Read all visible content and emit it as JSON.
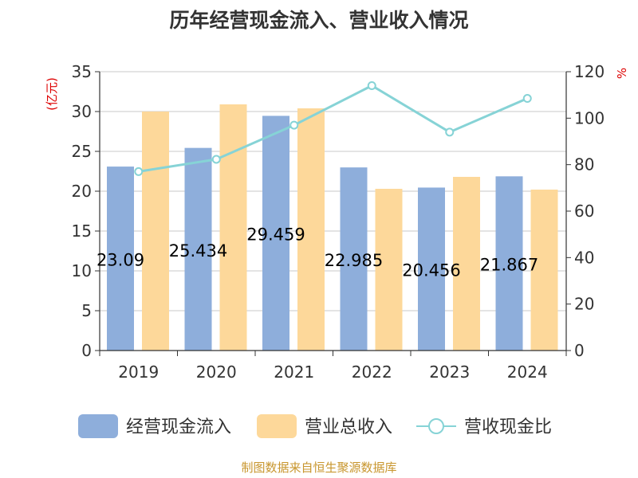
{
  "title": "历年经营现金流入、营业收入情况",
  "source": "制图数据来自恒生聚源数据库",
  "colors": {
    "inflow": "#8eaedb",
    "revenue": "#fdd89a",
    "ratio": "#86d3d6",
    "axis_title": "#dd0000"
  },
  "chart_data": {
    "type": "bar",
    "categories": [
      "2019",
      "2020",
      "2021",
      "2022",
      "2023",
      "2024"
    ],
    "series": [
      {
        "name": "经营现金流入",
        "type": "bar",
        "axis": "left",
        "values": [
          23.091,
          25.434,
          29.459,
          22.985,
          20.456,
          21.867
        ],
        "labels": [
          "23.09",
          "25.434",
          "29.459",
          "22.985",
          "20.456",
          "21.867"
        ]
      },
      {
        "name": "营业总收入",
        "type": "bar",
        "axis": "left",
        "values": [
          30.0,
          30.9,
          30.4,
          20.3,
          21.8,
          20.2
        ]
      },
      {
        "name": "营收现金比",
        "type": "line",
        "axis": "right",
        "values": [
          77,
          82.3,
          97,
          114,
          94,
          108.5
        ]
      }
    ],
    "y_left": {
      "label": "(亿元)",
      "lim": [
        0,
        35
      ],
      "ticks": [
        "0",
        "5",
        "10",
        "15",
        "20",
        "25",
        "30",
        "35"
      ]
    },
    "y_right": {
      "label": "%",
      "lim": [
        0,
        120
      ],
      "ticks": [
        "0",
        "20",
        "40",
        "60",
        "80",
        "100",
        "120"
      ]
    },
    "grid": true,
    "legend": "bottom"
  }
}
